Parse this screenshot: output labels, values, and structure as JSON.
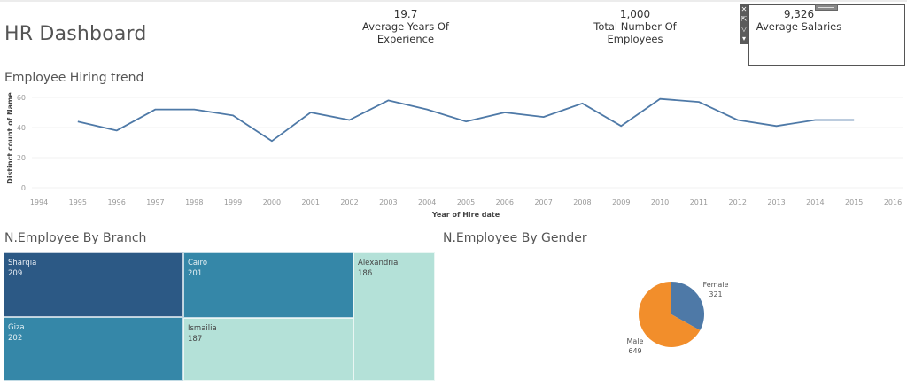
{
  "header": {
    "title": "HR Dashboard"
  },
  "kpis": [
    {
      "value": "19.7",
      "label": "Average Years Of Experience"
    },
    {
      "value": "1,000",
      "label": "Total Number Of Employees"
    },
    {
      "value": "9,326",
      "label": "Average Salaries"
    }
  ],
  "selection_toolbar": {
    "icons": [
      "close-icon",
      "popout-icon",
      "filter-icon",
      "more-options-icon"
    ],
    "glyphs": [
      "✕",
      "⇱",
      "▽",
      "▾"
    ]
  },
  "sections": {
    "hiring_trend": "Employee Hiring trend",
    "by_branch": "N.Employee By Branch",
    "by_gender": "N.Employee By Gender"
  },
  "colors": {
    "line": "#4e79a7",
    "treemap_dark": "#2c5985",
    "treemap_mid": "#3587a8",
    "treemap_light": "#b4e1d8",
    "female": "#4e79a7",
    "male": "#f28e2b"
  },
  "chart_data": [
    {
      "type": "line",
      "title": "Employee Hiring trend",
      "xlabel": "Year of Hire date",
      "ylabel": "Distinct count of Name",
      "xlim": [
        1994,
        2016
      ],
      "ylim": [
        0,
        60
      ],
      "x_ticks": [
        "1994",
        "1995",
        "1996",
        "1997",
        "1998",
        "1999",
        "2000",
        "2001",
        "2002",
        "2003",
        "2004",
        "2005",
        "2006",
        "2007",
        "2008",
        "2009",
        "2010",
        "2011",
        "2012",
        "2013",
        "2014",
        "2015",
        "2016"
      ],
      "y_ticks": [
        "0",
        "20",
        "40",
        "60"
      ],
      "grid": true,
      "series": [
        {
          "name": "Distinct count of Name",
          "x": [
            1995,
            1996,
            1997,
            1998,
            1999,
            2000,
            2001,
            2002,
            2003,
            2004,
            2005,
            2006,
            2007,
            2008,
            2009,
            2010,
            2011,
            2012,
            2013,
            2014,
            2015
          ],
          "values": [
            44,
            38,
            52,
            52,
            48,
            31,
            50,
            45,
            58,
            52,
            44,
            50,
            47,
            56,
            41,
            59,
            57,
            45,
            41,
            45,
            45
          ]
        }
      ]
    },
    {
      "type": "treemap",
      "title": "N.Employee By Branch",
      "categories": [
        "Sharqia",
        "Giza",
        "Cairo",
        "Ismailia",
        "Alexandria"
      ],
      "values": [
        209,
        202,
        201,
        187,
        186
      ]
    },
    {
      "type": "pie",
      "title": "N.Employee By Gender",
      "categories": [
        "Female",
        "Male"
      ],
      "values": [
        321,
        649
      ]
    }
  ]
}
